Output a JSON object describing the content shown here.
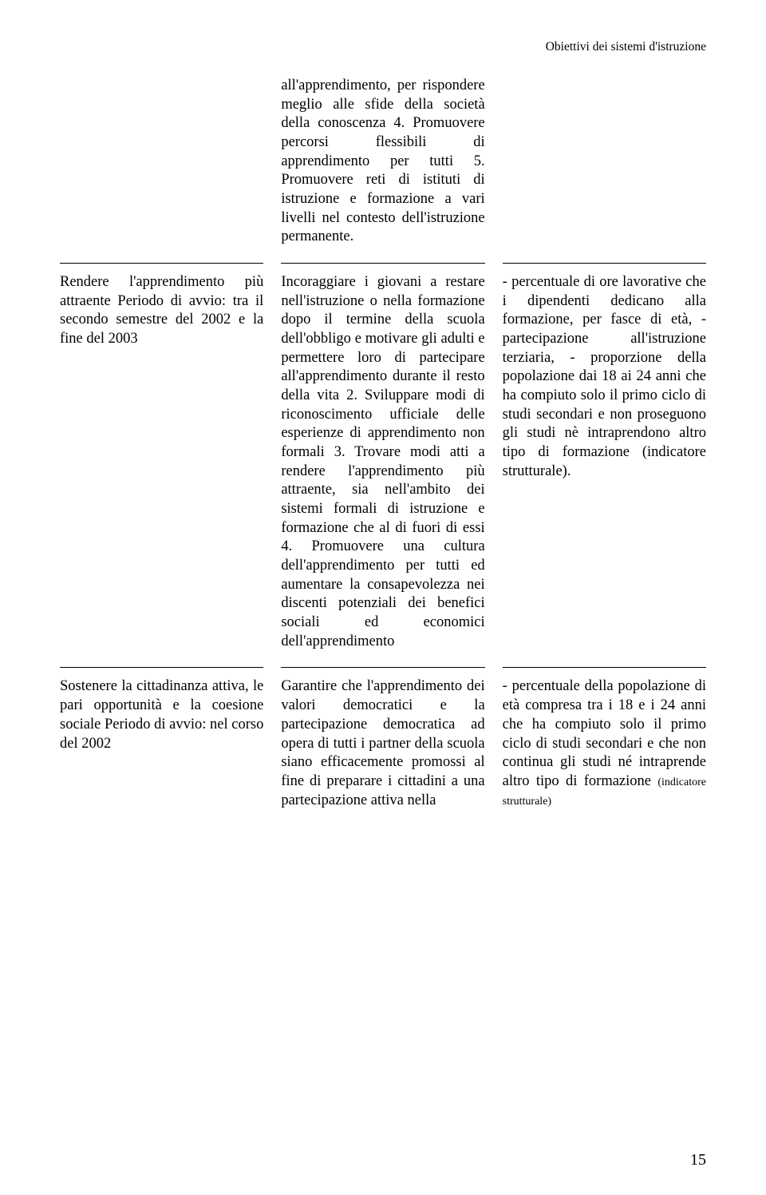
{
  "header": "Obiettivi dei sistemi d'istruzione",
  "row1": {
    "col1": "",
    "col2": "all'apprendimento, per rispondere meglio alle sfide della società della conoscenza 4. Promuovere percorsi flessibili di apprendimento per tutti 5. Promuovere reti di istituti di istruzione e formazione a vari livelli nel contesto dell'istruzione permanente.",
    "col3": ""
  },
  "row2": {
    "col1": "Rendere l'apprendimento più attraente Periodo di avvio: tra il secondo semestre del 2002 e la fine del 2003",
    "col2": "Incoraggiare i giovani a restare nell'istruzione o nella formazione dopo il termine della scuola dell'obbligo e motivare gli adulti e permettere loro di partecipare all'apprendimento durante il resto della vita 2. Sviluppare modi di riconoscimento ufficiale delle esperienze di apprendimento non formali 3. Trovare modi atti a rendere l'apprendimento più attraente, sia nell'ambito dei sistemi formali di istruzione e formazione che al di fuori di essi 4. Promuovere una cultura dell'apprendimento per tutti ed aumentare la consapevolezza nei discenti potenziali dei benefici sociali ed economici dell'apprendimento",
    "col3": "- percentuale di ore lavorative che i dipendenti dedicano alla formazione, per fasce di età, - partecipazione all'istruzione terziaria, - proporzione della popolazione dai 18 ai 24 anni che ha compiuto solo il primo ciclo di studi secondari e non proseguono gli studi nè intraprendono altro tipo di formazione (indicatore strutturale)."
  },
  "row3": {
    "col1": "Sostenere la cittadinanza attiva, le pari opportunità e la coesione sociale Periodo di avvio: nel corso del 2002",
    "col2": "Garantire che l'apprendimento dei valori democratici e la partecipazione democratica ad opera di tutti i partner della scuola siano efficacemente promossi al fine di preparare i cittadini a una partecipazione attiva nella",
    "col3_a": "- percentuale della popolazione di età compresa tra i 18 e i 24 anni che ha compiuto solo il primo ciclo di studi secondari e che non continua gli studi né intraprende altro tipo di formazione ",
    "col3_b": "(indicatore strutturale)"
  },
  "pageNumber": "15"
}
